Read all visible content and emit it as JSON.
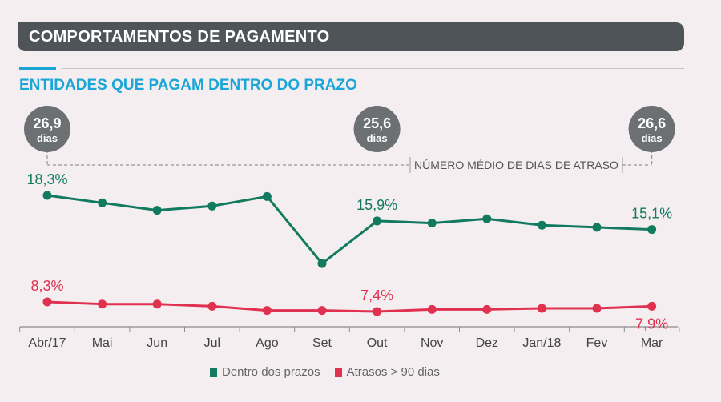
{
  "header": {
    "title": "COMPORTAMENTOS DE PAGAMENTO"
  },
  "subtitle": "ENTIDADES QUE PAGAM DENTRO DO PRAZO",
  "colors": {
    "green": "#127a5e",
    "red": "#e0314f",
    "badge": "#6d7073",
    "axis": "#8e8a8c"
  },
  "chart_data": {
    "type": "line",
    "title": "ENTIDADES QUE PAGAM DENTRO DO PRAZO",
    "categories": [
      "Abr/17",
      "Mai",
      "Jun",
      "Jul",
      "Ago",
      "Set",
      "Out",
      "Nov",
      "Dez",
      "Jan/18",
      "Fev",
      "Mar"
    ],
    "series": [
      {
        "name": "Dentro dos prazos",
        "color": "#127a5e",
        "values": [
          18.3,
          17.6,
          16.9,
          17.3,
          18.2,
          11.9,
          15.9,
          15.7,
          16.1,
          15.5,
          15.3,
          15.1
        ],
        "labels": [
          {
            "index": 0,
            "text": "18,3%"
          },
          {
            "index": 6,
            "text": "15,9%"
          },
          {
            "index": 11,
            "text": "15,1%"
          }
        ]
      },
      {
        "name": "Atrasos > 90 dias",
        "color": "#e0314f",
        "values": [
          8.3,
          8.1,
          8.1,
          7.9,
          7.5,
          7.5,
          7.4,
          7.6,
          7.6,
          7.7,
          7.7,
          7.9
        ],
        "labels": [
          {
            "index": 0,
            "text": "8,3%"
          },
          {
            "index": 6,
            "text": "7,4%"
          },
          {
            "index": 11,
            "text": "7,9%"
          }
        ]
      }
    ],
    "badges": [
      {
        "index": 0,
        "value": "26,9",
        "unit": "dias"
      },
      {
        "index": 6,
        "value": "25,6",
        "unit": "dias"
      },
      {
        "index": 11,
        "value": "26,6",
        "unit": "dias"
      }
    ],
    "annotation": "NÚMERO MÉDIO DE DIAS DE ATRASO",
    "legend_position": "bottom-center",
    "grid": false
  }
}
